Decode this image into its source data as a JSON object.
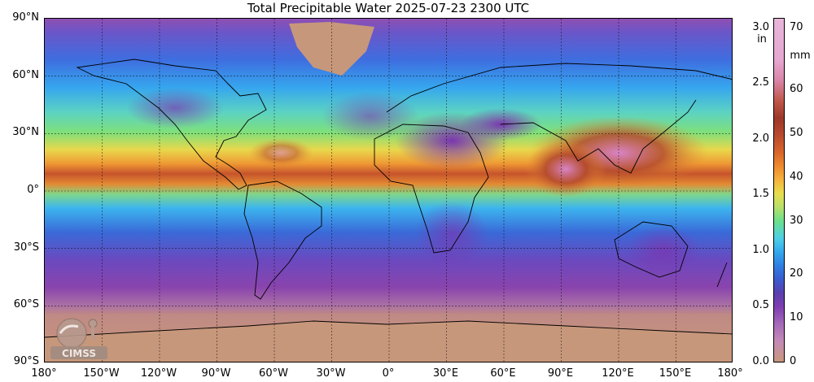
{
  "title": "Total Precipitable Water  2025-07-23 2300 UTC",
  "map": {
    "latitudes": [
      "90°N",
      "60°N",
      "30°N",
      "0°",
      "30°S",
      "60°S",
      "90°S"
    ],
    "longitudes": [
      "180°",
      "150°W",
      "120°W",
      "90°W",
      "60°W",
      "30°W",
      "0°",
      "30°E",
      "60°E",
      "90°E",
      "120°E",
      "150°E",
      "180°"
    ],
    "logo_text": "CIMSS"
  },
  "colorbar": {
    "unit_in": "in",
    "unit_mm": "mm",
    "in_ticks": [
      "3.0",
      "2.5",
      "2.0",
      "1.5",
      "1.0",
      "0.5",
      "0.0"
    ],
    "mm_ticks": [
      "70",
      "60",
      "50",
      "40",
      "30",
      "20",
      "10",
      "0"
    ],
    "colors": {
      "dry": "#c8977b",
      "low": "#7e3fb0",
      "mid_low": "#2f7fe0",
      "mid": "#6be08a",
      "mid_high": "#f5b33d",
      "high": "#b84a2e",
      "very_high": "#e6a7d0"
    }
  }
}
